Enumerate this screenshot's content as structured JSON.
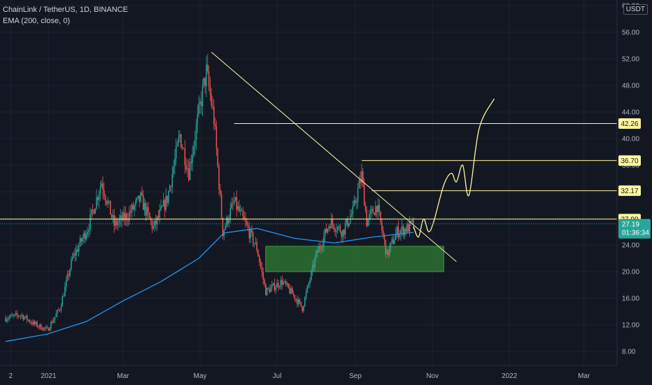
{
  "header": {
    "symbol_line": "ChainLink / TetherUS, 1D, BINANCE",
    "indicator_line": "EMA (200, close, 0)"
  },
  "price_scale": {
    "currency_badge": "USDT"
  },
  "colors": {
    "background": "#131722",
    "grid": "#1e222d",
    "up": "#26a69a",
    "down": "#ef5350",
    "ema": "#2196f3",
    "annotation": "#fff59d",
    "zone_fill": "#2e7d32",
    "last_price": "#26a69a"
  },
  "chart_data": {
    "type": "candlestick",
    "title": "ChainLink / TetherUS, 1D, BINANCE",
    "y_axis": {
      "ticks": [
        "60.00",
        "56.00",
        "52.00",
        "48.00",
        "44.00",
        "40.00",
        "36.00",
        "32.00",
        "28.00",
        "24.00",
        "20.00",
        "16.00",
        "12.00",
        "8.00"
      ],
      "range": [
        6,
        61
      ]
    },
    "x_axis": {
      "ticks": [
        "2",
        "2021",
        "Mar",
        "May",
        "Jul",
        "Sep",
        "Nov",
        "2022",
        "Mar"
      ]
    },
    "price_path": [
      {
        "date": "2020-11-28",
        "price": 13.0
      },
      {
        "date": "2020-12-10",
        "price": 13.5
      },
      {
        "date": "2020-12-20",
        "price": 12.2
      },
      {
        "date": "2020-12-31",
        "price": 11.2
      },
      {
        "date": "2021-01-10",
        "price": 14.5
      },
      {
        "date": "2021-01-20",
        "price": 22.0
      },
      {
        "date": "2021-02-01",
        "price": 26.5
      },
      {
        "date": "2021-02-12",
        "price": 33.5
      },
      {
        "date": "2021-02-22",
        "price": 27.0
      },
      {
        "date": "2021-03-05",
        "price": 28.5
      },
      {
        "date": "2021-03-15",
        "price": 31.0
      },
      {
        "date": "2021-03-25",
        "price": 26.5
      },
      {
        "date": "2021-04-05",
        "price": 31.0
      },
      {
        "date": "2021-04-15",
        "price": 40.5
      },
      {
        "date": "2021-04-22",
        "price": 35.0
      },
      {
        "date": "2021-05-02",
        "price": 46.0
      },
      {
        "date": "2021-05-06",
        "price": 50.0
      },
      {
        "date": "2021-05-12",
        "price": 43.0
      },
      {
        "date": "2021-05-19",
        "price": 26.0
      },
      {
        "date": "2021-05-28",
        "price": 30.5
      },
      {
        "date": "2021-06-05",
        "price": 27.5
      },
      {
        "date": "2021-06-15",
        "price": 23.5
      },
      {
        "date": "2021-06-22",
        "price": 17.0
      },
      {
        "date": "2021-07-05",
        "price": 18.5
      },
      {
        "date": "2021-07-15",
        "price": 16.2
      },
      {
        "date": "2021-07-21",
        "price": 14.5
      },
      {
        "date": "2021-08-01",
        "price": 22.5
      },
      {
        "date": "2021-08-12",
        "price": 27.5
      },
      {
        "date": "2021-08-22",
        "price": 26.0
      },
      {
        "date": "2021-08-30",
        "price": 29.0
      },
      {
        "date": "2021-09-06",
        "price": 34.5
      },
      {
        "date": "2021-09-10",
        "price": 27.5
      },
      {
        "date": "2021-09-18",
        "price": 30.0
      },
      {
        "date": "2021-09-26",
        "price": 22.5
      },
      {
        "date": "2021-10-04",
        "price": 26.0
      },
      {
        "date": "2021-10-12",
        "price": 26.5
      },
      {
        "date": "2021-10-17",
        "price": 27.19
      }
    ],
    "ema_200": [
      {
        "date": "2020-11-28",
        "value": 9.5
      },
      {
        "date": "2020-12-31",
        "value": 10.6
      },
      {
        "date": "2021-01-31",
        "value": 12.5
      },
      {
        "date": "2021-02-28",
        "value": 15.5
      },
      {
        "date": "2021-03-31",
        "value": 18.5
      },
      {
        "date": "2021-04-30",
        "value": 22.0
      },
      {
        "date": "2021-05-20",
        "value": 25.8
      },
      {
        "date": "2021-06-15",
        "value": 26.5
      },
      {
        "date": "2021-07-15",
        "value": 25.0
      },
      {
        "date": "2021-08-15",
        "value": 24.3
      },
      {
        "date": "2021-09-15",
        "value": 25.2
      },
      {
        "date": "2021-10-17",
        "value": 25.9
      }
    ],
    "annotations": {
      "trendline": {
        "from": {
          "date": "2021-05-10",
          "price": 53.0
        },
        "to": {
          "date": "2021-11-20",
          "price": 21.5
        }
      },
      "support_zone": {
        "date_from": "2021-06-22",
        "date_to": "2021-11-10",
        "price_low": 20.0,
        "price_high": 23.8
      },
      "horizontal_levels": [
        {
          "price": 42.26,
          "label": "42.26",
          "date_from": "2021-05-28"
        },
        {
          "price": 36.7,
          "label": "36.70",
          "date_from": "2021-09-06"
        },
        {
          "price": 32.17,
          "label": "32.17",
          "date_from": "2021-09-14"
        },
        {
          "price": 27.9,
          "label": "27.90",
          "date_from": "2020-11-20"
        }
      ],
      "projection_path": [
        {
          "date": "2021-10-17",
          "price": 26.8
        },
        {
          "date": "2021-10-21",
          "price": 25.2
        },
        {
          "date": "2021-10-25",
          "price": 27.9
        },
        {
          "date": "2021-10-29",
          "price": 26.0
        },
        {
          "date": "2021-11-02",
          "price": 27.5
        },
        {
          "date": "2021-11-10",
          "price": 33.0
        },
        {
          "date": "2021-11-16",
          "price": 34.8
        },
        {
          "date": "2021-11-20",
          "price": 33.5
        },
        {
          "date": "2021-11-25",
          "price": 36.0
        },
        {
          "date": "2021-11-30",
          "price": 31.5
        },
        {
          "date": "2021-12-08",
          "price": 41.5
        },
        {
          "date": "2021-12-20",
          "price": 46.0
        }
      ]
    },
    "last_price": {
      "value": 27.19,
      "label": "27.19",
      "countdown": "01:36:34"
    }
  }
}
